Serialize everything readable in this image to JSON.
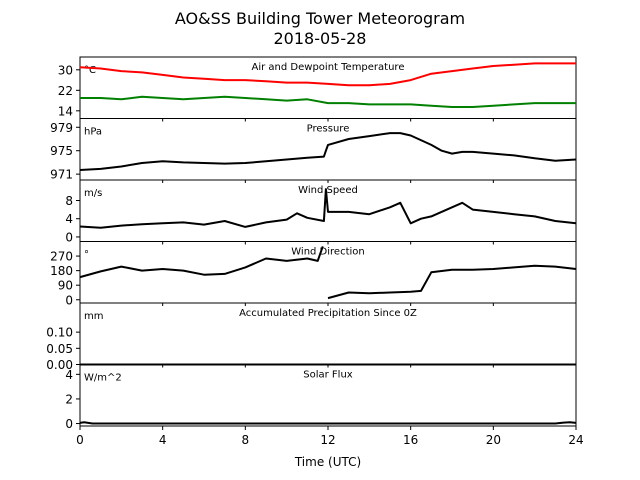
{
  "figure": {
    "title": "AO&SS Building Tower Meteorogram",
    "subtitle": "2018-05-28",
    "xlabel": "Time (UTC)"
  },
  "chart_data": [
    {
      "type": "line",
      "title": "Air and Dewpoint Temperature",
      "ylabel_unit": "°C",
      "xlim": [
        0,
        24
      ],
      "ylim": [
        11,
        35
      ],
      "yticks": [
        14,
        22,
        30
      ],
      "series": [
        {
          "color": "#ff0000",
          "x": [
            0,
            1,
            2,
            3,
            4,
            5,
            6,
            7,
            8,
            9,
            10,
            11,
            12,
            13,
            14,
            15,
            16,
            17,
            18,
            19,
            20,
            21,
            22,
            23,
            24
          ],
          "y": [
            31,
            30.5,
            29.5,
            29,
            28,
            27,
            26.5,
            26,
            26,
            25.5,
            25,
            25,
            24.5,
            24,
            24,
            24.5,
            26,
            28.5,
            29.5,
            30.5,
            31.5,
            32,
            32.5,
            32.5,
            32.5
          ]
        },
        {
          "color": "#008000",
          "x": [
            0,
            1,
            2,
            3,
            4,
            5,
            6,
            7,
            8,
            9,
            10,
            11,
            12,
            13,
            14,
            15,
            16,
            17,
            18,
            19,
            20,
            21,
            22,
            23,
            24
          ],
          "y": [
            19,
            19,
            18.5,
            19.5,
            19,
            18.5,
            19,
            19.5,
            19,
            18.5,
            18,
            18.5,
            17,
            17,
            16.5,
            16.5,
            16.5,
            16,
            15.5,
            15.5,
            16,
            16.5,
            17,
            17,
            17
          ]
        }
      ]
    },
    {
      "type": "line",
      "title": "Pressure",
      "ylabel_unit": "hPa",
      "xlim": [
        0,
        24
      ],
      "ylim": [
        970,
        980.5
      ],
      "yticks": [
        971,
        975,
        979
      ],
      "series": [
        {
          "color": "#000000",
          "x": [
            0,
            1,
            2,
            3,
            4,
            5,
            6,
            7,
            8,
            9,
            10,
            11,
            11.8,
            11.9,
            12,
            13,
            14,
            15,
            15.5,
            16,
            17,
            17.5,
            18,
            18.5,
            19,
            20,
            21,
            22,
            23,
            24
          ],
          "y": [
            971.7,
            971.9,
            972.3,
            972.9,
            973.2,
            973,
            972.9,
            972.8,
            972.9,
            973.2,
            973.5,
            973.8,
            974,
            975,
            976,
            977,
            977.5,
            978,
            978,
            977.6,
            976,
            975,
            974.5,
            974.8,
            974.8,
            974.5,
            974.2,
            973.7,
            973.3,
            973.5
          ]
        }
      ]
    },
    {
      "type": "line",
      "title": "Wind Speed",
      "ylabel_unit": "m/s",
      "xlim": [
        0,
        24
      ],
      "ylim": [
        -1,
        12.5
      ],
      "yticks": [
        0,
        4,
        8
      ],
      "series": [
        {
          "color": "#000000",
          "x": [
            0,
            1,
            2,
            3,
            4,
            5,
            6,
            7,
            8,
            9,
            10,
            10.5,
            11,
            11.8,
            11.9,
            12,
            13,
            14,
            15,
            15.5,
            16,
            16.5,
            17,
            18,
            18.5,
            19,
            20,
            21,
            22,
            23,
            24
          ],
          "y": [
            2.3,
            2,
            2.5,
            2.8,
            3,
            3.2,
            2.7,
            3.5,
            2.2,
            3.2,
            3.8,
            5.2,
            4.2,
            3.5,
            10.5,
            5.5,
            5.5,
            5,
            6.5,
            7.5,
            3,
            4,
            4.5,
            6.5,
            7.5,
            6,
            5.5,
            5,
            4.5,
            3.5,
            3
          ]
        }
      ]
    },
    {
      "type": "line",
      "title": "Wind Direction",
      "ylabel_unit": "°",
      "xlim": [
        0,
        24
      ],
      "ylim": [
        -20,
        360
      ],
      "yticks": [
        0,
        90,
        180,
        270
      ],
      "series": [
        {
          "color": "#000000",
          "x": [
            0,
            1,
            2,
            3,
            4,
            5,
            6,
            7,
            8,
            9,
            10,
            11,
            11.5,
            11.75,
            11.8,
            12,
            13,
            14,
            15,
            16,
            16.5,
            17,
            18,
            19,
            20,
            21,
            22,
            23,
            24
          ],
          "y": [
            140,
            175,
            205,
            180,
            190,
            180,
            155,
            160,
            200,
            255,
            240,
            255,
            240,
            330,
            null,
            10,
            45,
            40,
            45,
            50,
            55,
            170,
            185,
            185,
            190,
            200,
            210,
            205,
            190
          ]
        }
      ]
    },
    {
      "type": "line",
      "title": "Accumulated Precipitation Since 0Z",
      "ylabel_unit": "mm",
      "xlim": [
        0,
        24
      ],
      "ylim": [
        0,
        0.19
      ],
      "yticks": [
        0.0,
        0.05,
        0.1
      ],
      "ytick_labels": [
        "0.00",
        "0.05",
        "0.10"
      ],
      "series": [
        {
          "color": "#000000",
          "x": [
            0,
            24
          ],
          "y": [
            0,
            0
          ]
        }
      ]
    },
    {
      "type": "line",
      "title": "Solar Flux",
      "ylabel_unit": "W/m^2",
      "xlim": [
        0,
        24
      ],
      "ylim": [
        -0.2,
        4.8
      ],
      "yticks": [
        0,
        2,
        4
      ],
      "xticks": [
        0,
        4,
        8,
        12,
        16,
        20,
        24
      ],
      "series": [
        {
          "color": "#000000",
          "x": [
            0,
            0.2,
            0.4,
            0.6,
            1,
            4,
            8,
            12,
            16,
            20,
            23,
            23.4,
            23.7,
            24
          ],
          "y": [
            0.05,
            0.1,
            0.05,
            0,
            0,
            0,
            0,
            0,
            0,
            0,
            0,
            0.08,
            0.1,
            0.05
          ]
        }
      ]
    }
  ]
}
